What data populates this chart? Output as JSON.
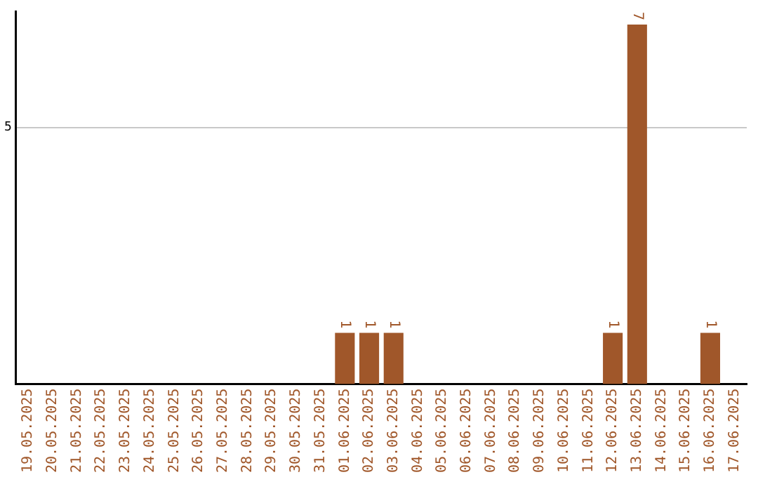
{
  "chart_data": {
    "type": "bar",
    "categories": [
      "19.05.2025",
      "20.05.2025",
      "21.05.2025",
      "22.05.2025",
      "23.05.2025",
      "24.05.2025",
      "25.05.2025",
      "26.05.2025",
      "27.05.2025",
      "28.05.2025",
      "29.05.2025",
      "30.05.2025",
      "31.05.2025",
      "01.06.2025",
      "02.06.2025",
      "03.06.2025",
      "04.06.2025",
      "05.06.2025",
      "06.06.2025",
      "07.06.2025",
      "08.06.2025",
      "09.06.2025",
      "10.06.2025",
      "11.06.2025",
      "12.06.2025",
      "13.06.2025",
      "14.06.2025",
      "15.06.2025",
      "16.06.2025",
      "17.06.2025"
    ],
    "values": [
      null,
      null,
      null,
      null,
      null,
      null,
      null,
      null,
      null,
      null,
      null,
      null,
      null,
      1,
      1,
      1,
      null,
      null,
      null,
      null,
      null,
      null,
      null,
      null,
      1,
      7,
      null,
      null,
      1,
      null
    ],
    "data_labels": true,
    "color": "#a0572a",
    "ylim": [
      0,
      7.25
    ],
    "yticks": [
      5
    ],
    "grid": "y",
    "legend": false
  }
}
